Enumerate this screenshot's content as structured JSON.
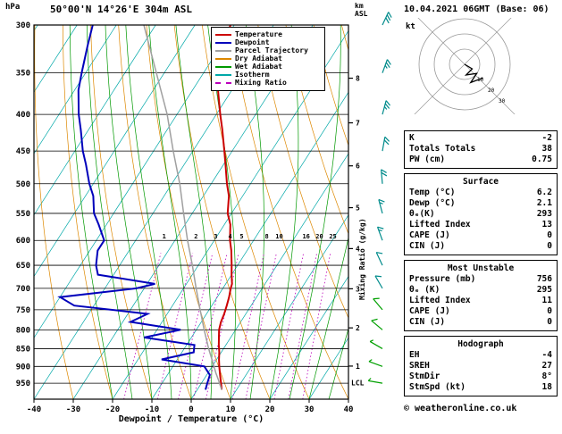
{
  "title": "50°00'N 14°26'E 304m ASL",
  "units": {
    "pressure_label": "hPa",
    "altitude_label_line1": "km",
    "altitude_label_line2": "ASL",
    "mixing_ratio_axis": "Mixing Ratio (g/kg)",
    "x_axis_label": "Dewpoint / Temperature (°C)",
    "lcl_label": "LCL"
  },
  "legend": {
    "items": [
      {
        "label": "Temperature",
        "color_key": "temperature",
        "dashed": false
      },
      {
        "label": "Dewpoint",
        "color_key": "dewpoint",
        "dashed": false
      },
      {
        "label": "Parcel Trajectory",
        "color_key": "parcel",
        "dashed": false
      },
      {
        "label": "Dry Adiabat",
        "color_key": "dry_adiabat",
        "dashed": false
      },
      {
        "label": "Wet Adiabat",
        "color_key": "wet_adiabat",
        "dashed": false
      },
      {
        "label": "Isotherm",
        "color_key": "isotherm",
        "dashed": false
      },
      {
        "label": "Mixing Ratio",
        "color_key": "mixing_ratio",
        "dashed": true
      }
    ]
  },
  "axes": {
    "pressure_ticks": [
      300,
      350,
      400,
      450,
      500,
      550,
      600,
      650,
      700,
      750,
      800,
      850,
      900,
      950
    ],
    "temp_ticks": [
      -40,
      -30,
      -20,
      -10,
      0,
      10,
      20,
      30,
      40
    ],
    "km_ticks": [
      1,
      2,
      3,
      4,
      5,
      6,
      7,
      8
    ],
    "mixing_ratio_values": [
      1,
      2,
      3,
      4,
      5,
      8,
      10,
      16,
      20,
      25
    ]
  },
  "chart_data": {
    "type": "skewt-logp",
    "pressure_range": [
      300,
      1000
    ],
    "temp_range": [
      -40,
      40
    ],
    "colors": {
      "temperature": "#cc0000",
      "dewpoint": "#0000bb",
      "parcel": "#a0a0a0",
      "dry_adiabat": "#dd8800",
      "wet_adiabat": "#009900",
      "isotherm": "#00a8a8",
      "mixing_ratio": "#bb00bb"
    },
    "sounding": {
      "pressure": [
        970,
        950,
        925,
        900,
        880,
        860,
        840,
        820,
        800,
        780,
        760,
        740,
        720,
        700,
        690,
        670,
        650,
        620,
        600,
        570,
        550,
        520,
        500,
        470,
        450,
        420,
        400,
        370,
        350,
        320,
        300
      ],
      "temperature": [
        6.2,
        5.0,
        3.4,
        1.8,
        0.6,
        -0.5,
        -1.8,
        -3.0,
        -4.2,
        -5.0,
        -5.5,
        -6.2,
        -7.0,
        -8.0,
        -8.4,
        -10.0,
        -11.5,
        -14.0,
        -16.0,
        -18.5,
        -21.0,
        -23.5,
        -26.0,
        -29.5,
        -32.0,
        -36.0,
        -39.0,
        -43.5,
        -46.0,
        -49.0,
        -51.0
      ],
      "dewpoint": [
        2.1,
        1.5,
        0.8,
        -2.0,
        -14.0,
        -7.0,
        -8.0,
        -22.0,
        -14.0,
        -28.0,
        -25.0,
        -45.0,
        -50.0,
        -32.0,
        -28.0,
        -44.0,
        -46.0,
        -48.0,
        -48.0,
        -52.0,
        -55.0,
        -58.0,
        -61.0,
        -65.0,
        -68.0,
        -72.0,
        -75.0,
        -79.0,
        -81.0,
        -84.0,
        -86.0
      ]
    },
    "parcel": {
      "pressure": [
        970,
        940,
        919,
        880,
        850,
        800,
        750,
        700,
        650,
        600,
        550,
        500,
        450,
        400,
        350,
        300
      ],
      "temperature": [
        6.2,
        3.8,
        2.0,
        -1.2,
        -3.8,
        -8.0,
        -12.3,
        -16.8,
        -21.5,
        -26.8,
        -32.2,
        -38.0,
        -45.0,
        -52.5,
        -62.0,
        -73.0
      ]
    },
    "winds": [
      {
        "p": 300,
        "dir": 25,
        "spd": 30,
        "color": "#008b8b"
      },
      {
        "p": 350,
        "dir": 20,
        "spd": 25,
        "color": "#008b8b"
      },
      {
        "p": 400,
        "dir": 15,
        "spd": 25,
        "color": "#008b8b"
      },
      {
        "p": 450,
        "dir": 10,
        "spd": 20,
        "color": "#008b8b"
      },
      {
        "p": 500,
        "dir": 355,
        "spd": 20,
        "color": "#008b8b"
      },
      {
        "p": 550,
        "dir": 345,
        "spd": 15,
        "color": "#008b8b"
      },
      {
        "p": 600,
        "dir": 340,
        "spd": 15,
        "color": "#008b8b"
      },
      {
        "p": 650,
        "dir": 335,
        "spd": 10,
        "color": "#008b8b"
      },
      {
        "p": 700,
        "dir": 330,
        "spd": 10,
        "color": "#008b8b"
      },
      {
        "p": 750,
        "dir": 320,
        "spd": 10,
        "color": "#00a000"
      },
      {
        "p": 800,
        "dir": 310,
        "spd": 10,
        "color": "#00a000"
      },
      {
        "p": 850,
        "dir": 300,
        "spd": 5,
        "color": "#00a000"
      },
      {
        "p": 900,
        "dir": 290,
        "spd": 5,
        "color": "#00a000"
      },
      {
        "p": 950,
        "dir": 280,
        "spd": 5,
        "color": "#00a000"
      }
    ],
    "hodograph_trace": [
      [
        0,
        0
      ],
      [
        5,
        -3
      ],
      [
        1,
        -7
      ],
      [
        8,
        -6
      ],
      [
        4,
        -12
      ],
      [
        12,
        -9
      ]
    ]
  },
  "panel": {
    "header": "10.04.2021 06GMT (Base: 06)",
    "hodograph_unit": "kt",
    "hodograph_rings": [
      10,
      20,
      30
    ],
    "stats": [
      {
        "label": "K",
        "value": "-2"
      },
      {
        "label": "Totals Totals",
        "value": "38"
      },
      {
        "label": "PW (cm)",
        "value": "0.75"
      }
    ],
    "surface": {
      "title": "Surface",
      "rows": [
        {
          "label": "Temp (°C)",
          "value": "6.2"
        },
        {
          "label": "Dewp (°C)",
          "value": "2.1"
        },
        {
          "label": "θₑ(K)",
          "value": "293"
        },
        {
          "label": "Lifted Index",
          "value": "13"
        },
        {
          "label": "CAPE (J)",
          "value": "0"
        },
        {
          "label": "CIN (J)",
          "value": "0"
        }
      ]
    },
    "most_unstable": {
      "title": "Most Unstable",
      "rows": [
        {
          "label": "Pressure (mb)",
          "value": "756"
        },
        {
          "label": "θₑ (K)",
          "value": "295"
        },
        {
          "label": "Lifted Index",
          "value": "11"
        },
        {
          "label": "CAPE (J)",
          "value": "0"
        },
        {
          "label": "CIN (J)",
          "value": "0"
        }
      ]
    },
    "hodograph_stats": {
      "title": "Hodograph",
      "rows": [
        {
          "label": "EH",
          "value": "-4"
        },
        {
          "label": "SREH",
          "value": "27"
        },
        {
          "label": "StmDir",
          "value": "8°"
        },
        {
          "label": "StmSpd (kt)",
          "value": "18"
        }
      ]
    }
  },
  "footer": {
    "copyright": "© weatheronline.co.uk"
  }
}
